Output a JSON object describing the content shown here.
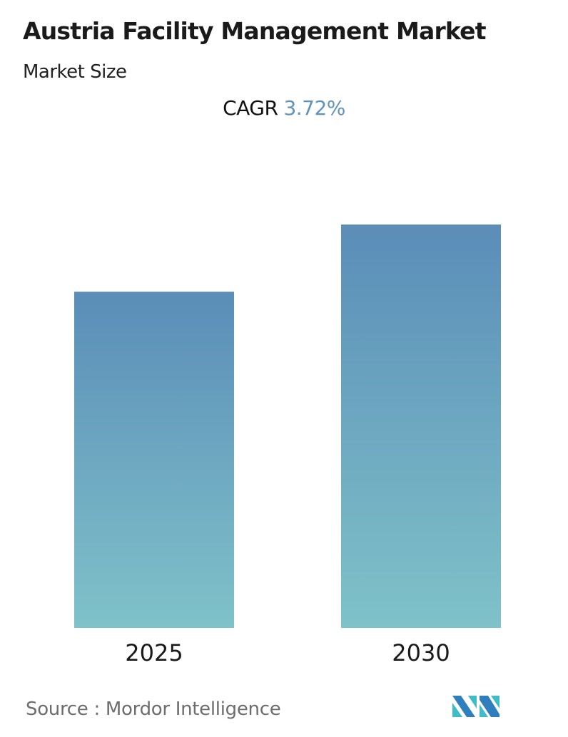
{
  "title": "Austria Facility Management Market",
  "subtitle": "Market Size",
  "cagr": {
    "label": "CAGR",
    "value": "3.72%"
  },
  "source": {
    "label": "Source :",
    "name": "Mordor Intelligence"
  },
  "logo_text": "Mordor Intelligence",
  "chart_data": {
    "type": "bar",
    "title": "Austria Facility Management Market",
    "categories": [
      "2025",
      "2030"
    ],
    "values": [
      1.0,
      1.2
    ],
    "xlabel": "",
    "ylabel": "",
    "ylim": [
      0,
      1.2
    ],
    "grid": false,
    "legend": "none",
    "colors": {
      "bar_top": "#5b8db8",
      "bar_bottom": "#7fc2c9",
      "cagr_value": "#5f93bd"
    }
  }
}
